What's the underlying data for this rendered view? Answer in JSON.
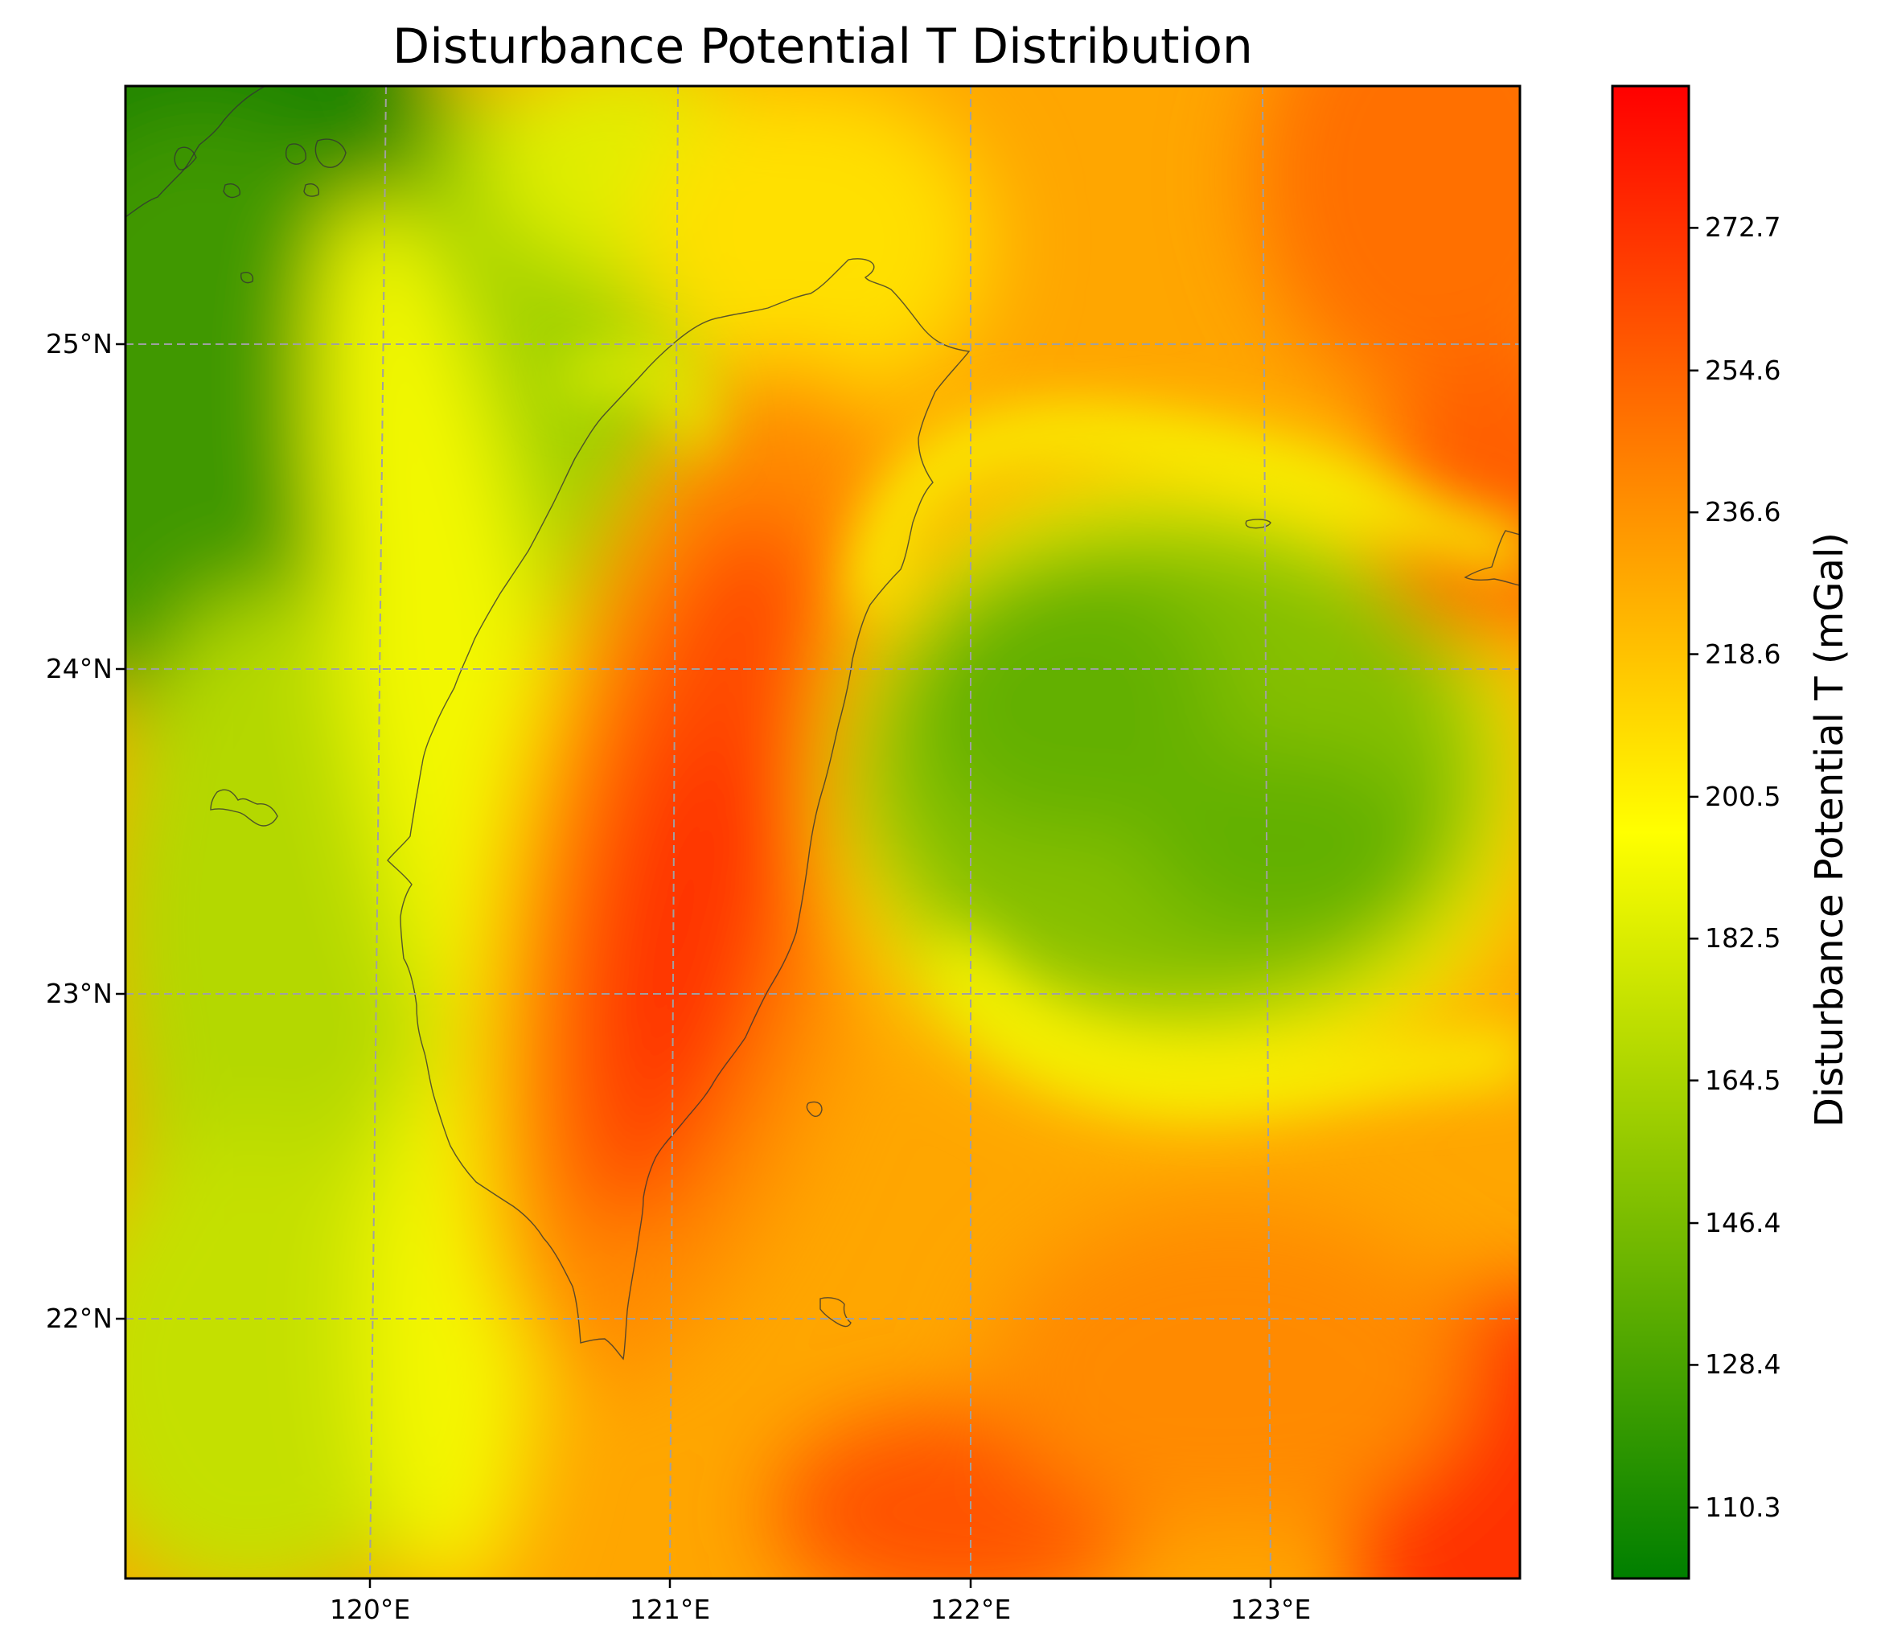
{
  "title": "Disturbance Potential T Distribution",
  "map": {
    "type": "heatmap",
    "region": "Taiwan",
    "lon_range": [
      119.2,
      123.8
    ],
    "lat_range": [
      21.2,
      25.8
    ],
    "gridlines": true,
    "colormap": [
      "#007f00",
      "#ffff00",
      "#ff0000"
    ],
    "xticks": [
      {
        "value": 120,
        "label": "120°E"
      },
      {
        "value": 121,
        "label": "121°E"
      },
      {
        "value": 122,
        "label": "122°E"
      },
      {
        "value": 123,
        "label": "123°E"
      }
    ],
    "yticks": [
      {
        "value": 22,
        "label": "22°N"
      },
      {
        "value": 23,
        "label": "23°N"
      },
      {
        "value": 24,
        "label": "24°N"
      },
      {
        "value": 25,
        "label": "25°N"
      }
    ]
  },
  "colorbar": {
    "label": "Disturbance Potential T (mGal)",
    "range": [
      101.3,
      290.7
    ],
    "ticks": [
      "110.3",
      "128.4",
      "146.4",
      "164.5",
      "182.5",
      "200.5",
      "218.6",
      "236.6",
      "254.6",
      "272.7"
    ]
  }
}
